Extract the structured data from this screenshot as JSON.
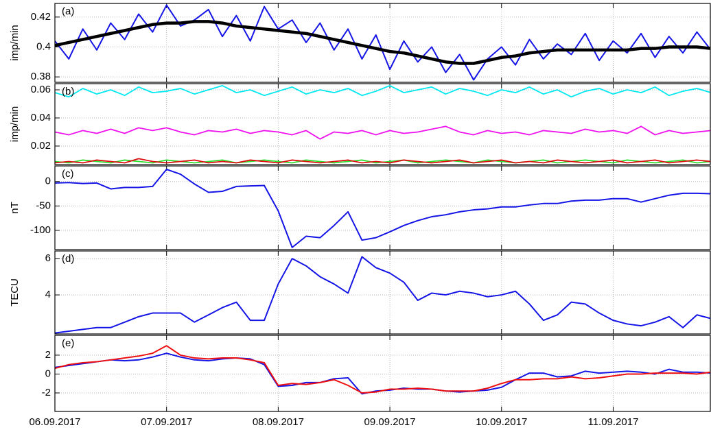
{
  "chart_data": [
    {
      "type": "line",
      "label": "(a)",
      "ylabel": "imp/min",
      "x": [
        0,
        0.125,
        0.25,
        0.375,
        0.5,
        0.625,
        0.75,
        0.875,
        1,
        1.125,
        1.25,
        1.375,
        1.5,
        1.625,
        1.75,
        1.875,
        2,
        2.125,
        2.25,
        2.375,
        2.5,
        2.625,
        2.75,
        2.875,
        3,
        3.125,
        3.25,
        3.375,
        3.5,
        3.625,
        3.75,
        3.875,
        4,
        4.125,
        4.25,
        4.375,
        4.5,
        4.625,
        4.75,
        4.875,
        5,
        5.125,
        5.25,
        5.375,
        5.5,
        5.625,
        5.75,
        5.875
      ],
      "series": [
        {
          "color": "#1414e6",
          "values": [
            0.404,
            0.392,
            0.412,
            0.398,
            0.416,
            0.405,
            0.422,
            0.41,
            0.428,
            0.414,
            0.418,
            0.425,
            0.407,
            0.421,
            0.404,
            0.427,
            0.412,
            0.418,
            0.403,
            0.416,
            0.398,
            0.412,
            0.392,
            0.408,
            0.385,
            0.404,
            0.39,
            0.4,
            0.383,
            0.395,
            0.378,
            0.392,
            0.4,
            0.388,
            0.405,
            0.392,
            0.402,
            0.395,
            0.409,
            0.391,
            0.404,
            0.396,
            0.409,
            0.393,
            0.407,
            0.396,
            0.41,
            0.398
          ]
        },
        {
          "color": "#000000",
          "values": [
            0.401,
            0.403,
            0.405,
            0.407,
            0.409,
            0.411,
            0.413,
            0.415,
            0.416,
            0.416,
            0.417,
            0.417,
            0.416,
            0.414,
            0.413,
            0.412,
            0.411,
            0.41,
            0.409,
            0.407,
            0.405,
            0.403,
            0.401,
            0.399,
            0.397,
            0.396,
            0.394,
            0.392,
            0.39,
            0.389,
            0.389,
            0.391,
            0.393,
            0.394,
            0.396,
            0.397,
            0.398,
            0.398,
            0.398,
            0.398,
            0.398,
            0.398,
            0.399,
            0.399,
            0.4,
            0.4,
            0.4,
            0.399
          ]
        }
      ],
      "xlim": [
        0,
        5.87
      ],
      "xticks": [
        0,
        1,
        2,
        3,
        4,
        5
      ],
      "ylim": [
        0.3764,
        0.4291
      ],
      "yticks": [
        0.38,
        0.4,
        0.42
      ],
      "grid": true
    },
    {
      "type": "line",
      "label": "(b)",
      "ylabel": "imp/min",
      "x": [
        0,
        0.125,
        0.25,
        0.375,
        0.5,
        0.625,
        0.75,
        0.875,
        1,
        1.125,
        1.25,
        1.375,
        1.5,
        1.625,
        1.75,
        1.875,
        2,
        2.125,
        2.25,
        2.375,
        2.5,
        2.625,
        2.75,
        2.875,
        3,
        3.125,
        3.25,
        3.375,
        3.5,
        3.625,
        3.75,
        3.875,
        4,
        4.125,
        4.25,
        4.375,
        4.5,
        4.625,
        4.75,
        4.875,
        5,
        5.125,
        5.25,
        5.375,
        5.5,
        5.625,
        5.75,
        5.875
      ],
      "series": [
        {
          "color": "#00e8f0",
          "values": [
            0.058,
            0.055,
            0.061,
            0.057,
            0.06,
            0.056,
            0.062,
            0.058,
            0.059,
            0.061,
            0.057,
            0.06,
            0.063,
            0.058,
            0.06,
            0.056,
            0.059,
            0.062,
            0.057,
            0.06,
            0.058,
            0.061,
            0.056,
            0.059,
            0.063,
            0.058,
            0.06,
            0.062,
            0.057,
            0.061,
            0.059,
            0.056,
            0.06,
            0.058,
            0.062,
            0.057,
            0.06,
            0.055,
            0.059,
            0.061,
            0.057,
            0.06,
            0.058,
            0.062,
            0.056,
            0.059,
            0.061,
            0.058
          ]
        },
        {
          "color": "#ee10ee",
          "values": [
            0.03,
            0.028,
            0.031,
            0.029,
            0.032,
            0.029,
            0.033,
            0.031,
            0.033,
            0.03,
            0.028,
            0.031,
            0.03,
            0.032,
            0.029,
            0.031,
            0.03,
            0.028,
            0.031,
            0.025,
            0.03,
            0.029,
            0.031,
            0.028,
            0.031,
            0.029,
            0.03,
            0.032,
            0.034,
            0.03,
            0.028,
            0.031,
            0.029,
            0.03,
            0.028,
            0.031,
            0.03,
            0.029,
            0.032,
            0.03,
            0.031,
            0.029,
            0.034,
            0.028,
            0.031,
            0.029,
            0.03,
            0.031
          ]
        },
        {
          "color": "#30dd30",
          "values": [
            0.009,
            0.008,
            0.01,
            0.009,
            0.008,
            0.01,
            0.009,
            0.008,
            0.01,
            0.009,
            0.008,
            0.009,
            0.01,
            0.008,
            0.009,
            0.01,
            0.009,
            0.008,
            0.01,
            0.009,
            0.008,
            0.009,
            0.01,
            0.008,
            0.009,
            0.01,
            0.008,
            0.009,
            0.01,
            0.009,
            0.008,
            0.01,
            0.009,
            0.008,
            0.009,
            0.01,
            0.008,
            0.009,
            0.01,
            0.009,
            0.008,
            0.01,
            0.009,
            0.008,
            0.009,
            0.01,
            0.008,
            0.009
          ]
        },
        {
          "color": "#dd1010",
          "values": [
            0.008,
            0.009,
            0.008,
            0.01,
            0.009,
            0.008,
            0.011,
            0.009,
            0.008,
            0.009,
            0.01,
            0.008,
            0.009,
            0.008,
            0.01,
            0.009,
            0.008,
            0.01,
            0.009,
            0.008,
            0.009,
            0.01,
            0.008,
            0.009,
            0.008,
            0.01,
            0.009,
            0.008,
            0.009,
            0.01,
            0.008,
            0.009,
            0.01,
            0.008,
            0.009,
            0.008,
            0.01,
            0.009,
            0.008,
            0.009,
            0.01,
            0.008,
            0.009,
            0.01,
            0.008,
            0.009,
            0.01,
            0.009
          ]
        }
      ],
      "xlim": [
        0,
        5.87
      ],
      "xticks": [
        0,
        1,
        2,
        3,
        4,
        5
      ],
      "ylim": [
        0.0068,
        0.0644
      ],
      "yticks": [
        0.02,
        0.04,
        0.06
      ],
      "grid": true
    },
    {
      "type": "line",
      "label": "(c)",
      "ylabel": "nT",
      "x": [
        0,
        0.125,
        0.25,
        0.375,
        0.5,
        0.625,
        0.75,
        0.875,
        1,
        1.125,
        1.25,
        1.375,
        1.5,
        1.625,
        1.75,
        1.875,
        2,
        2.125,
        2.25,
        2.375,
        2.5,
        2.625,
        2.75,
        2.875,
        3,
        3.125,
        3.25,
        3.375,
        3.5,
        3.625,
        3.75,
        3.875,
        4,
        4.125,
        4.25,
        4.375,
        4.5,
        4.625,
        4.75,
        4.875,
        5,
        5.125,
        5.25,
        5.375,
        5.5,
        5.625,
        5.75,
        5.875
      ],
      "series": [
        {
          "color": "#1414e6",
          "values": [
            -3,
            -2,
            -4,
            -3,
            -15,
            -12,
            -12,
            -10,
            25,
            15,
            -5,
            -22,
            -20,
            -10,
            -9,
            -8,
            -60,
            -135,
            -112,
            -115,
            -90,
            -62,
            -120,
            -115,
            -103,
            -90,
            -80,
            -72,
            -68,
            -62,
            -58,
            -56,
            -52,
            -52,
            -48,
            -45,
            -45,
            -40,
            -38,
            -38,
            -35,
            -35,
            -42,
            -35,
            -28,
            -24,
            -24,
            -25
          ]
        }
      ],
      "xlim": [
        0,
        5.87
      ],
      "xticks": [
        0,
        1,
        2,
        3,
        4,
        5
      ],
      "ylim": [
        -139.4,
        32
      ],
      "yticks": [
        -100,
        -50,
        0
      ],
      "grid": true
    },
    {
      "type": "line",
      "label": "(d)",
      "ylabel": "TECU",
      "x": [
        0,
        0.125,
        0.25,
        0.375,
        0.5,
        0.625,
        0.75,
        0.875,
        1,
        1.125,
        1.25,
        1.375,
        1.5,
        1.625,
        1.75,
        1.875,
        2,
        2.125,
        2.25,
        2.375,
        2.5,
        2.625,
        2.75,
        2.875,
        3,
        3.125,
        3.25,
        3.375,
        3.5,
        3.625,
        3.75,
        3.875,
        4,
        4.125,
        4.25,
        4.375,
        4.5,
        4.625,
        4.75,
        4.875,
        5,
        5.125,
        5.25,
        5.375,
        5.5,
        5.625,
        5.75,
        5.875
      ],
      "series": [
        {
          "color": "#1414e6",
          "values": [
            1.9,
            2.0,
            2.1,
            2.2,
            2.2,
            2.5,
            2.8,
            3.0,
            3.0,
            3.0,
            2.5,
            2.9,
            3.3,
            3.6,
            2.6,
            2.6,
            4.6,
            6.0,
            5.6,
            5.0,
            4.6,
            4.1,
            6.1,
            5.5,
            5.2,
            4.7,
            3.7,
            4.1,
            4.0,
            4.2,
            4.1,
            3.9,
            4.0,
            4.2,
            3.5,
            2.6,
            2.9,
            3.6,
            3.5,
            3.0,
            2.6,
            2.4,
            2.3,
            2.5,
            2.8,
            2.2,
            2.9,
            2.7
          ]
        }
      ],
      "xlim": [
        0,
        5.87
      ],
      "xticks": [
        0,
        1,
        2,
        3,
        4,
        5
      ],
      "ylim": [
        1.85,
        6.42
      ],
      "yticks": [
        4,
        6
      ],
      "grid": true
    },
    {
      "type": "line",
      "label": "(e)",
      "x": [
        0,
        0.125,
        0.25,
        0.375,
        0.5,
        0.625,
        0.75,
        0.875,
        1,
        1.125,
        1.25,
        1.375,
        1.5,
        1.625,
        1.75,
        1.875,
        2,
        2.125,
        2.25,
        2.375,
        2.5,
        2.625,
        2.75,
        2.875,
        3,
        3.125,
        3.25,
        3.375,
        3.5,
        3.625,
        3.75,
        3.875,
        4,
        4.125,
        4.25,
        4.375,
        4.5,
        4.625,
        4.75,
        4.875,
        5,
        5.125,
        5.25,
        5.375,
        5.5,
        5.625,
        5.75,
        5.875
      ],
      "series": [
        {
          "color": "#1414e6",
          "values": [
            0.7,
            0.9,
            1.1,
            1.3,
            1.5,
            1.4,
            1.5,
            1.8,
            2.2,
            1.8,
            1.5,
            1.4,
            1.6,
            1.7,
            1.6,
            1.0,
            -1.3,
            -1.2,
            -0.9,
            -0.9,
            -0.5,
            -0.4,
            -2.1,
            -1.8,
            -1.7,
            -1.5,
            -1.6,
            -1.6,
            -1.8,
            -1.9,
            -1.8,
            -1.7,
            -1.4,
            -0.6,
            0.1,
            0.1,
            -0.3,
            -0.2,
            0.3,
            0.1,
            0.2,
            0.3,
            0.2,
            0.0,
            0.5,
            0.2,
            0.2,
            0.1
          ]
        },
        {
          "color": "#ee1010",
          "values": [
            0.6,
            1.0,
            1.2,
            1.3,
            1.5,
            1.7,
            1.9,
            2.2,
            3.0,
            2.0,
            1.7,
            1.6,
            1.7,
            1.7,
            1.5,
            1.2,
            -1.2,
            -1.0,
            -1.1,
            -0.9,
            -0.6,
            -1.2,
            -2.0,
            -1.9,
            -1.6,
            -1.6,
            -1.5,
            -1.6,
            -1.8,
            -1.8,
            -1.8,
            -1.5,
            -1.0,
            -0.6,
            -0.6,
            -0.5,
            -0.5,
            -0.3,
            -0.5,
            -0.4,
            -0.2,
            0.0,
            0.0,
            0.1,
            0.1,
            0.1,
            0.0,
            0.2
          ]
        }
      ],
      "xlim": [
        0,
        5.87
      ],
      "xticks": [
        {
          "value": 0,
          "label": "06.09.2017"
        },
        {
          "value": 1,
          "label": "07.09.2017"
        },
        {
          "value": 2,
          "label": "08.09.2017"
        },
        {
          "value": 3,
          "label": "09.09.2017"
        },
        {
          "value": 4,
          "label": "10.09.2017"
        },
        {
          "value": 5,
          "label": "11.09.2017"
        }
      ],
      "ylim": [
        -3.96,
        4.1
      ],
      "yticks": [
        -2,
        0,
        2
      ],
      "grid": true
    }
  ]
}
